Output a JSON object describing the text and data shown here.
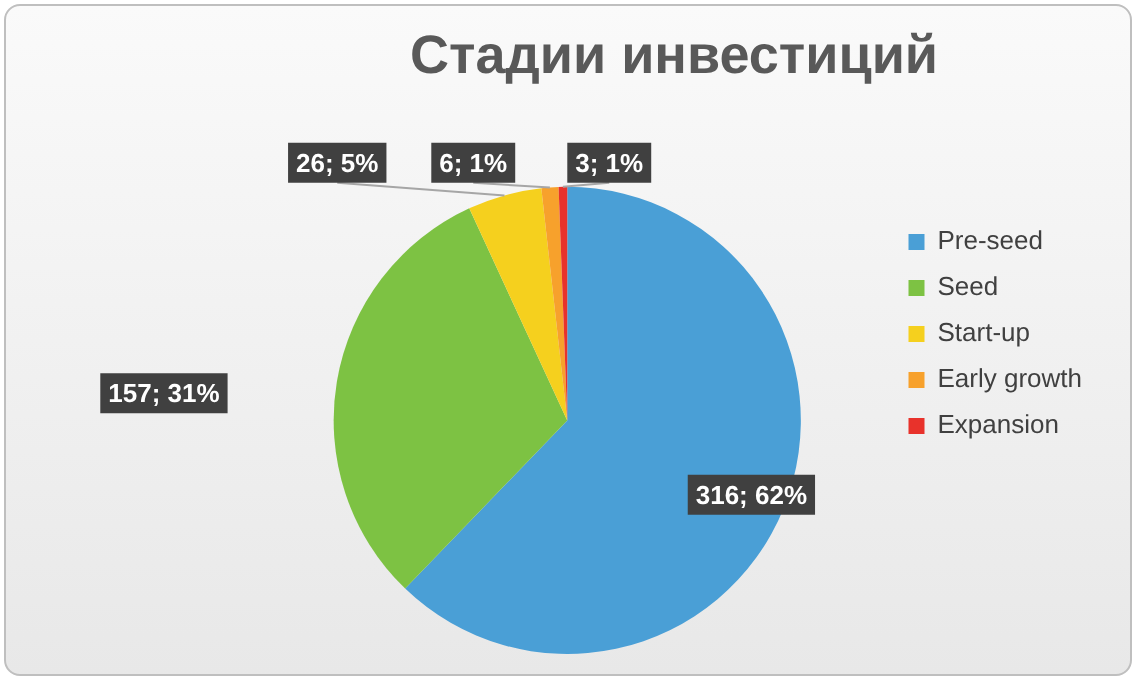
{
  "chart_data": {
    "type": "pie",
    "title": "Стадии инвестиций",
    "categories": [
      "Pre-seed",
      "Seed",
      "Start-up",
      "Early growth",
      "Expansion"
    ],
    "values": [
      316,
      157,
      26,
      6,
      3
    ],
    "value_labels": [
      "316; 62%",
      "157; 31%",
      "26; 5%",
      "6; 1%",
      "3; 1%"
    ],
    "colors": [
      "#4a9fd6",
      "#7dc243",
      "#f5d01e",
      "#f7a12c",
      "#e8322b"
    ],
    "legend": "right"
  }
}
